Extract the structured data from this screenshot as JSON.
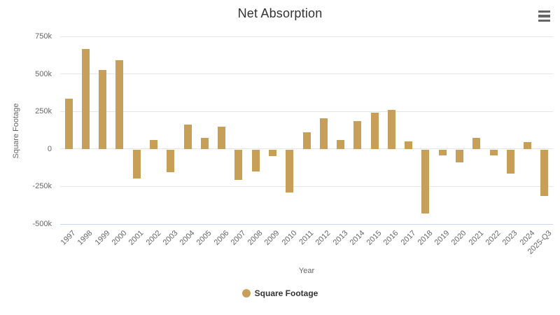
{
  "chart": {
    "title": "Net Absorption",
    "y_axis_title": "Square Footage",
    "x_axis_title": "Year",
    "legend": {
      "label": "Square Footage",
      "marker_color": "#C89F58"
    },
    "colors": {
      "bar": "#C89F58",
      "title_text": "#333333",
      "axis_text": "#666666",
      "gridline": "#e6e6e6",
      "axis_line": "#ccd6eb",
      "menu_icon": "#666666",
      "background": "#ffffff"
    }
  },
  "chart_data": {
    "type": "bar",
    "title": "Net Absorption",
    "xlabel": "Year",
    "ylabel": "Square Footage",
    "categories": [
      "1997",
      "1998",
      "1999",
      "2000",
      "2001",
      "2002",
      "2003",
      "2004",
      "2005",
      "2006",
      "2007",
      "2008",
      "2009",
      "2010",
      "2011",
      "2012",
      "2013",
      "2014",
      "2015",
      "2016",
      "2017",
      "2018",
      "2019",
      "2020",
      "2021",
      "2022",
      "2023",
      "2024",
      "2025-Q3"
    ],
    "series": [
      {
        "name": "Square Footage",
        "color": "#C89F58",
        "values": [
          335000,
          665000,
          525000,
          590000,
          -190000,
          60000,
          -150000,
          160000,
          75000,
          150000,
          -200000,
          -145000,
          -45000,
          -285000,
          110000,
          205000,
          60000,
          185000,
          240000,
          260000,
          50000,
          -425000,
          -40000,
          -85000,
          75000,
          -40000,
          -160000,
          45000,
          -310000
        ]
      }
    ],
    "ylim": [
      -500000,
      750000
    ],
    "yticks": [
      750000,
      500000,
      250000,
      0,
      -250000,
      -500000
    ],
    "ytick_labels": [
      "750k",
      "500k",
      "250k",
      "0",
      "-250k",
      "-500k"
    ],
    "grid": true,
    "legend_position": "bottom-center",
    "x_label_rotation": -45
  }
}
